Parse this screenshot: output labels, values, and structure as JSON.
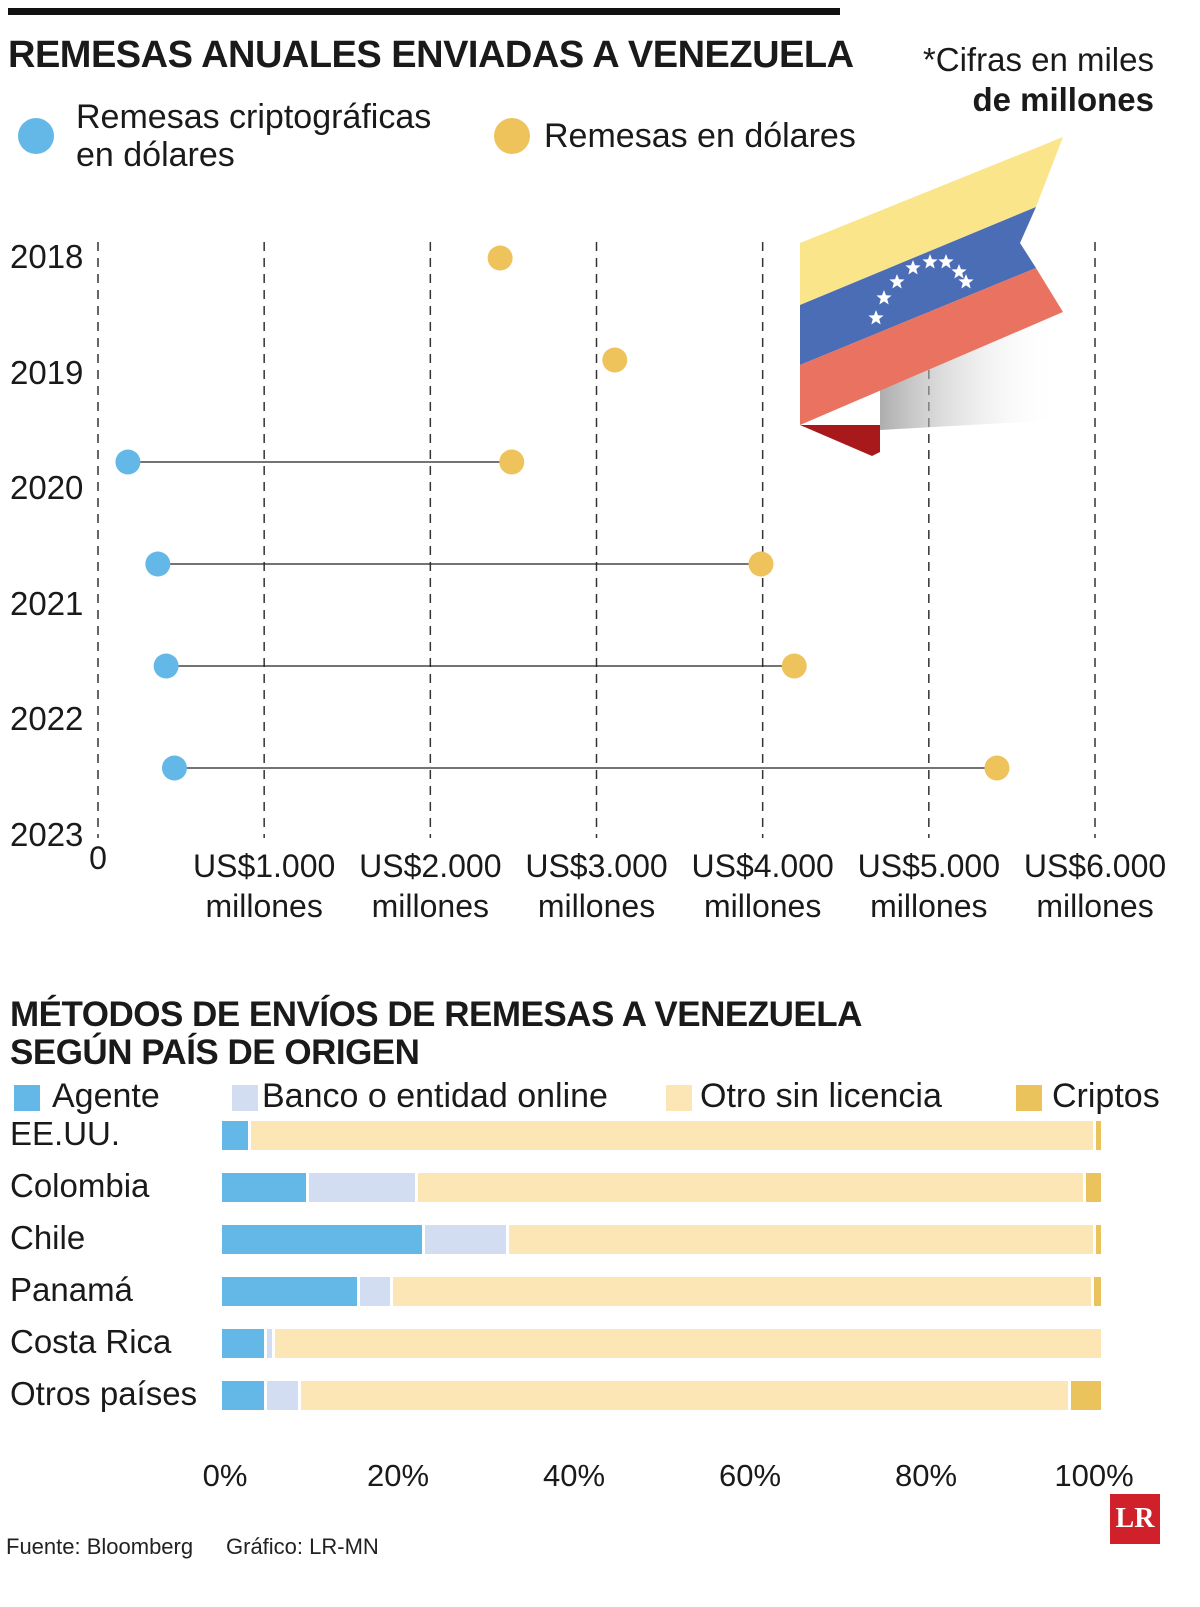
{
  "colors": {
    "crypto_dot": "#63b8e8",
    "dollar_dot": "#eec35b",
    "agente": "#63b8e8",
    "banco": "#d3ddf2",
    "otro": "#fde6b6",
    "criptos": "#eac35c",
    "logo": "#d0202a"
  },
  "chart_data": [
    {
      "type": "dumbbell",
      "title": "REMESAS ANUALES ENVIADAS A VENEZUELA",
      "note": "*Cifras en miles de millones",
      "note_line1": "*Cifras en miles",
      "note_line2": "de millones",
      "legend": [
        {
          "name": "Remesas criptográficas en dólares",
          "line1": "Remesas criptográficas",
          "line2": "en dólares",
          "color": "#63b8e8"
        },
        {
          "name": "Remesas en dólares",
          "color": "#eec35b"
        }
      ],
      "years": [
        "2018",
        "2019",
        "2020",
        "2021",
        "2022",
        "2023"
      ],
      "crypto": [
        null,
        null,
        180,
        360,
        410,
        460
      ],
      "dollars": [
        2420,
        3110,
        2490,
        3990,
        4190,
        5410
      ],
      "xlim": [
        0,
        6000
      ],
      "xticks": [
        {
          "value": 0,
          "line1": "0",
          "line2": ""
        },
        {
          "value": 1000,
          "line1": "US$1.000",
          "line2": "millones"
        },
        {
          "value": 2000,
          "line1": "US$2.000",
          "line2": "millones"
        },
        {
          "value": 3000,
          "line1": "US$3.000",
          "line2": "millones"
        },
        {
          "value": 4000,
          "line1": "US$4.000",
          "line2": "millones"
        },
        {
          "value": 5000,
          "line1": "US$5.000",
          "line2": "millones"
        },
        {
          "value": 6000,
          "line1": "US$6.000",
          "line2": "millones"
        }
      ],
      "grid": "vertical dashed"
    },
    {
      "type": "bar",
      "stacked": true,
      "orientation": "horizontal",
      "title_line1": "MÉTODOS DE ENVÍOS DE REMESAS A VENEZUELA",
      "title_line2": "SEGÚN PAÍS DE ORIGEN",
      "categories": [
        "EE.UU.",
        "Colombia",
        "Chile",
        "Panamá",
        "Costa Rica",
        "Otros países"
      ],
      "series": [
        {
          "name": "Agente",
          "color": "#63b8e8",
          "values": [
            3.1,
            9.7,
            22.8,
            15.4,
            4.9,
            4.9
          ]
        },
        {
          "name": "Banco o entidad online",
          "color": "#d3ddf2",
          "values": [
            0,
            12.3,
            9.6,
            3.8,
            0.9,
            3.8
          ]
        },
        {
          "name": "Otro sin licencia",
          "color": "#fde6b6",
          "values": [
            96.0,
            76.0,
            66.7,
            79.7,
            94.2,
            87.5
          ]
        },
        {
          "name": "Criptos",
          "color": "#eac35c",
          "values": [
            0.9,
            2.0,
            0.9,
            1.1,
            0,
            3.8
          ]
        }
      ],
      "xlim": [
        0,
        100
      ],
      "xticks": [
        "0%",
        "20%",
        "40%",
        "60%",
        "80%",
        "100%"
      ]
    }
  ],
  "footer": {
    "source": "Fuente: Bloomberg",
    "credit": "Gráfico: LR-MN",
    "logo": "LR"
  }
}
